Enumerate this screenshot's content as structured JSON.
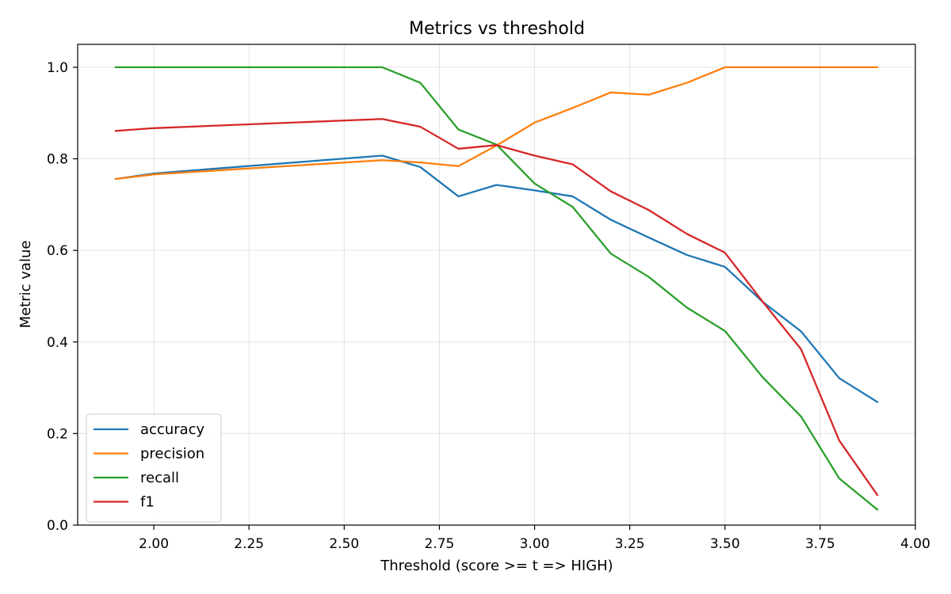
{
  "chart_data": {
    "type": "line",
    "title": "Metrics vs threshold",
    "xlabel": "Threshold (score >= t => HIGH)",
    "ylabel": "Metric value",
    "xlim": [
      1.8,
      4.0
    ],
    "ylim": [
      0.0,
      1.05
    ],
    "x_ticks": [
      "2.00",
      "2.25",
      "2.50",
      "2.75",
      "3.00",
      "3.25",
      "3.50",
      "3.75",
      "4.00"
    ],
    "y_ticks": [
      "0.0",
      "0.2",
      "0.4",
      "0.6",
      "0.8",
      "1.0"
    ],
    "grid": true,
    "legend_position": "lower-left",
    "x": [
      1.9,
      2.0,
      2.6,
      2.7,
      2.8,
      2.9,
      3.0,
      3.1,
      3.2,
      3.3,
      3.4,
      3.5,
      3.6,
      3.7,
      3.8,
      3.9
    ],
    "series": [
      {
        "name": "accuracy",
        "color": "#1f77b4",
        "values": [
          0.756,
          0.768,
          0.807,
          0.782,
          0.718,
          0.743,
          0.731,
          0.718,
          0.667,
          0.628,
          0.59,
          0.564,
          0.487,
          0.423,
          0.321,
          0.269
        ]
      },
      {
        "name": "precision",
        "color": "#ff7f0e",
        "values": [
          0.756,
          0.766,
          0.797,
          0.792,
          0.784,
          0.829,
          0.879,
          0.911,
          0.945,
          0.94,
          0.966,
          1.0,
          1.0,
          1.0,
          1.0,
          1.0
        ]
      },
      {
        "name": "recall",
        "color": "#2ca02c",
        "values": [
          1.0,
          1.0,
          1.0,
          0.966,
          0.864,
          0.831,
          0.746,
          0.695,
          0.593,
          0.542,
          0.475,
          0.424,
          0.322,
          0.237,
          0.102,
          0.034
        ]
      },
      {
        "name": "f1",
        "color": "#d62728",
        "values": [
          0.861,
          0.867,
          0.887,
          0.87,
          0.822,
          0.83,
          0.807,
          0.788,
          0.729,
          0.688,
          0.636,
          0.595,
          0.487,
          0.384,
          0.185,
          0.066
        ]
      }
    ]
  }
}
